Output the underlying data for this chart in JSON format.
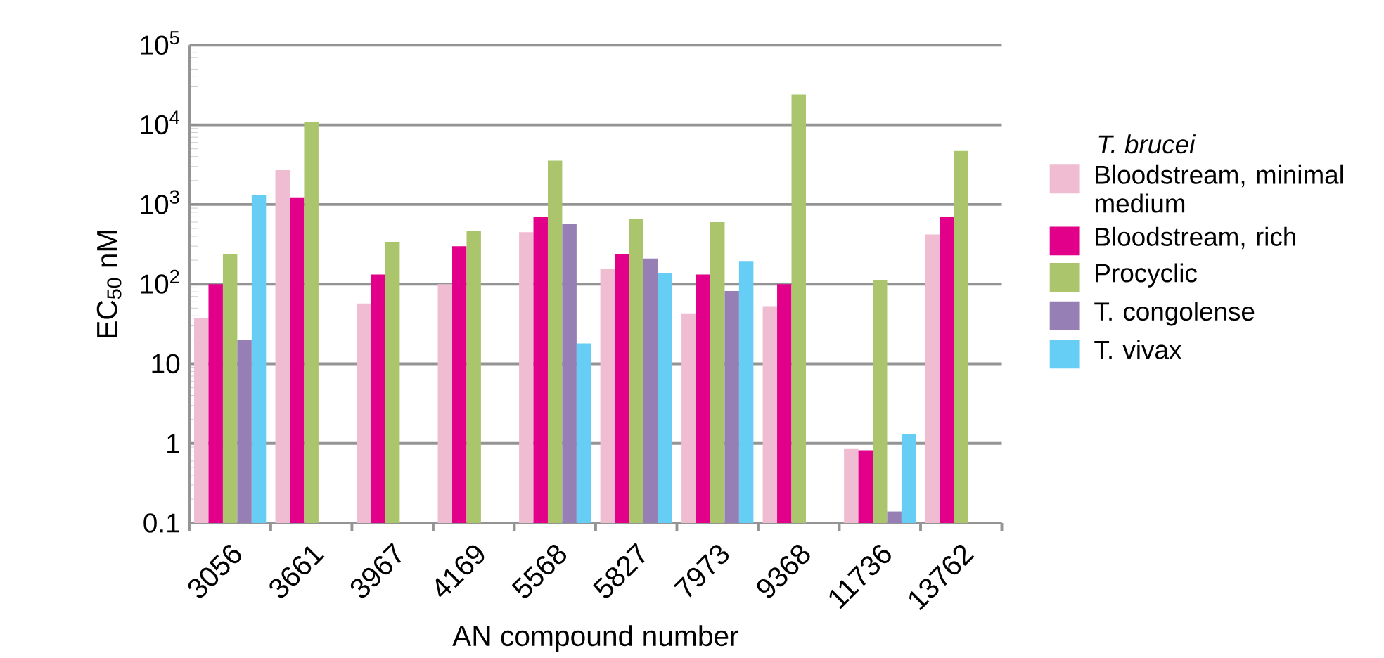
{
  "chart_data": {
    "type": "bar",
    "xlabel": "AN compound number",
    "ylabel": "EC$_{50}$ nM",
    "legend_title": "T. brucei",
    "categories": [
      "3056",
      "3661",
      "3967",
      "4169",
      "5568",
      "5827",
      "7973",
      "9368",
      "11736",
      "13762"
    ],
    "series": [
      {
        "name": "Bloodstream, minimal medium",
        "color": "#f0bcd1",
        "values": [
          37,
          2700,
          57,
          100,
          450,
          155,
          43,
          53,
          0.87,
          420
        ]
      },
      {
        "name": "Bloodstream, rich",
        "color": "#e2008a",
        "values": [
          100,
          1230,
          132,
          300,
          700,
          240,
          132,
          100,
          0.82,
          700
        ]
      },
      {
        "name": "Procyclic",
        "color": "#abc56d",
        "values": [
          240,
          11000,
          340,
          470,
          3550,
          650,
          600,
          24000,
          112,
          4700
        ]
      },
      {
        "name": "T. congolense",
        "color": "#957fb4",
        "values": [
          20,
          null,
          null,
          null,
          570,
          210,
          82,
          null,
          0.14,
          null
        ]
      },
      {
        "name": "T. vivax",
        "color": "#66cdf5",
        "values": [
          1320,
          null,
          null,
          null,
          18,
          137,
          195,
          null,
          1.3,
          null
        ]
      }
    ],
    "log": "y",
    "ylim": [
      0.1,
      100000
    ],
    "yticks": [
      0.1,
      1,
      10,
      {
        "value": 100,
        "label": "10$^{2}$"
      },
      {
        "value": 1000,
        "label": "10$^{3}$"
      },
      {
        "value": 10000,
        "label": "10$^{4}$"
      },
      {
        "value": 100000,
        "label": "10$^{5}$"
      }
    ],
    "grid": "y",
    "legend": "right"
  }
}
